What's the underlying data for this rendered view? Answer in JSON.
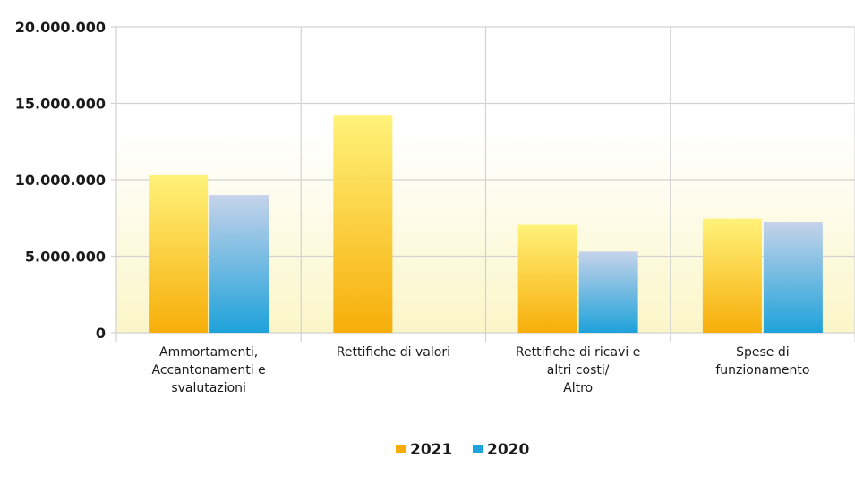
{
  "chart_data": {
    "type": "bar",
    "categories": [
      [
        "Ammortamenti,",
        "Accantonamenti e",
        "svalutazioni"
      ],
      [
        "Rettifiche di valori"
      ],
      [
        "Rettifiche di ricavi e",
        "altri costi/",
        "Altro"
      ],
      [
        "Spese di",
        "funzionamento"
      ]
    ],
    "series": [
      {
        "name": "2021",
        "values": [
          10300000,
          14200000,
          7100000,
          7450000
        ]
      },
      {
        "name": "2020",
        "values": [
          9000000,
          null,
          5300000,
          7250000
        ]
      }
    ],
    "ylim": [
      0,
      20000000
    ],
    "yticks": [
      0,
      5000000,
      10000000,
      15000000,
      20000000
    ],
    "ytick_labels": [
      "0",
      "5.000.000",
      "10.000.000",
      "15.000.000",
      "20.000.000"
    ],
    "grid": true,
    "legend_position": "bottom-center",
    "colors": {
      "s2021_top": "#fff27a",
      "s2021_bottom": "#f7ae0a",
      "s2020_top": "#c6d3ea",
      "s2020_bottom": "#1ea2da",
      "plot_bg_top": "#ffffff",
      "plot_bg_bottom": "#fbf6c8",
      "grid": "#d2d2d2"
    }
  }
}
